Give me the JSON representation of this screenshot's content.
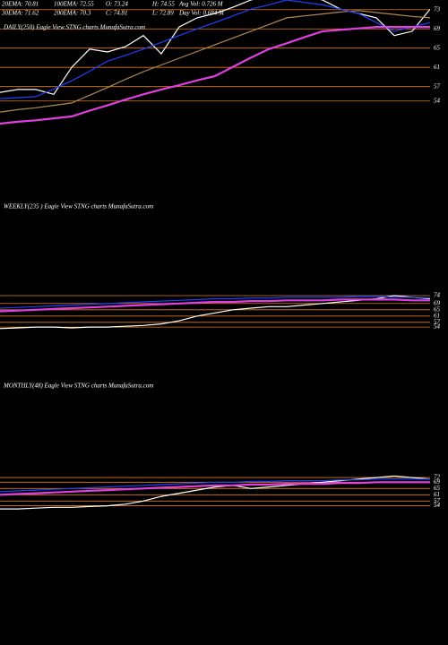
{
  "chart_data": [
    {
      "type": "line",
      "title": "DAILY(250) Eagle View STNG charts MunafaSutra.com",
      "annotations": [
        "20EMA: 70.81",
        "100EMA: 72.55",
        "O: 73.24",
        "H: 74.55",
        "Avg Vol: 0.726  M",
        "30EMA: 71.62",
        "200EMA: 70.3",
        "C: 74.81",
        "L: 72.89",
        "Day Vol: 0.684  M"
      ],
      "ylim": [
        48,
        75
      ],
      "yticks": [
        73,
        69,
        65,
        61,
        57,
        54
      ],
      "grid": true,
      "series": [
        {
          "color": "#ffffff",
          "values": [
            55.8,
            56.4,
            56.4,
            55.4,
            61,
            64.8,
            64.2,
            65.3,
            67.6,
            63.8,
            69.4,
            71.3,
            72.2,
            73.5,
            75,
            76,
            76,
            76,
            75,
            73.1,
            72.2,
            71.3,
            67.6,
            68.5,
            73.1
          ]
        },
        {
          "color": "#b08a50",
          "values": [
            51.7,
            52.2,
            52.6,
            53.1,
            53.6,
            55.2,
            56.8,
            58.5,
            60.1,
            61.5,
            62.9,
            64.3,
            65.7,
            67.1,
            68.5,
            69.9,
            71.3,
            71.7,
            72.1,
            72.5,
            72.8,
            72.4,
            72,
            71.6,
            71.3
          ]
        },
        {
          "color": "#1e40ff",
          "values": [
            54.5,
            54.7,
            54.9,
            56.5,
            58.2,
            60.2,
            62.3,
            63.5,
            64.8,
            66.2,
            67.6,
            69,
            70.3,
            71.7,
            73.1,
            74,
            75,
            74.5,
            74,
            73.1,
            72.2,
            70.3,
            68.5,
            69.4,
            70.3
          ]
        },
        {
          "color": "#e040e0",
          "values": [
            49.3,
            49.7,
            50,
            50.4,
            50.8,
            52,
            53.1,
            54.3,
            55.4,
            56.4,
            57.3,
            58.3,
            59.2,
            61.1,
            63,
            64.8,
            66,
            67.3,
            68.5,
            68.8,
            69.1,
            69.4,
            69.4,
            69.4,
            69.4
          ]
        }
      ]
    },
    {
      "type": "line",
      "title": "WEEKLY(235 ) Eagle View STNG charts MunafaSutra.com",
      "ylim": [
        17,
        131
      ],
      "yticks": [
        74,
        69,
        65,
        61,
        57,
        54
      ],
      "grid": true,
      "series": [
        {
          "color": "#ffffff",
          "values": [
            53,
            53.5,
            54,
            54,
            53.5,
            54,
            54,
            54.5,
            55,
            56,
            58,
            61,
            63,
            65,
            66,
            67,
            67,
            68,
            69,
            70,
            71,
            72,
            74,
            73,
            72
          ]
        },
        {
          "color": "#1e40ff",
          "values": [
            66,
            66.5,
            67,
            67.5,
            68,
            68.5,
            69,
            69.5,
            70,
            70.5,
            71,
            71.5,
            72,
            72,
            72.5,
            72.5,
            73,
            73,
            73,
            73,
            73.5,
            73.5,
            73,
            73,
            72.5
          ]
        },
        {
          "color": "#e040e0",
          "values": [
            64,
            64.5,
            65,
            65.5,
            66,
            66.5,
            67,
            67.5,
            68,
            68.5,
            69,
            69.5,
            70,
            70,
            70.5,
            70.5,
            71,
            71,
            71,
            71.5,
            71.5,
            71.5,
            71.5,
            71,
            71
          ]
        }
      ]
    },
    {
      "type": "line",
      "title": "MONTHLY(48) Eagle View STNG charts MunafaSutra.com",
      "ylim": [
        16.6,
        130.9
      ],
      "yticks": [
        72,
        69,
        65,
        61,
        57,
        54
      ],
      "grid": true,
      "series": [
        {
          "color": "#ffffff",
          "values": [
            52,
            52,
            52.5,
            53,
            53,
            53.5,
            54,
            55,
            57,
            60,
            62,
            64,
            66,
            67,
            65,
            66,
            67,
            68,
            69,
            70,
            71,
            72,
            73,
            72,
            71
          ]
        },
        {
          "color": "#1e40ff",
          "values": [
            63,
            63.5,
            64,
            64.5,
            65,
            65.5,
            66,
            66.5,
            67,
            67.5,
            68,
            68.5,
            69,
            69,
            69.5,
            69.5,
            70,
            70,
            70,
            70.5,
            70.5,
            71,
            71,
            71,
            71
          ]
        },
        {
          "color": "#e040e0",
          "values": [
            61,
            61.5,
            62,
            62.5,
            63,
            63.5,
            64,
            64.5,
            65,
            65.5,
            66,
            66.5,
            67,
            67,
            67.5,
            67.5,
            68,
            68,
            68,
            68.5,
            68.5,
            69,
            69,
            69,
            69
          ]
        }
      ]
    }
  ]
}
